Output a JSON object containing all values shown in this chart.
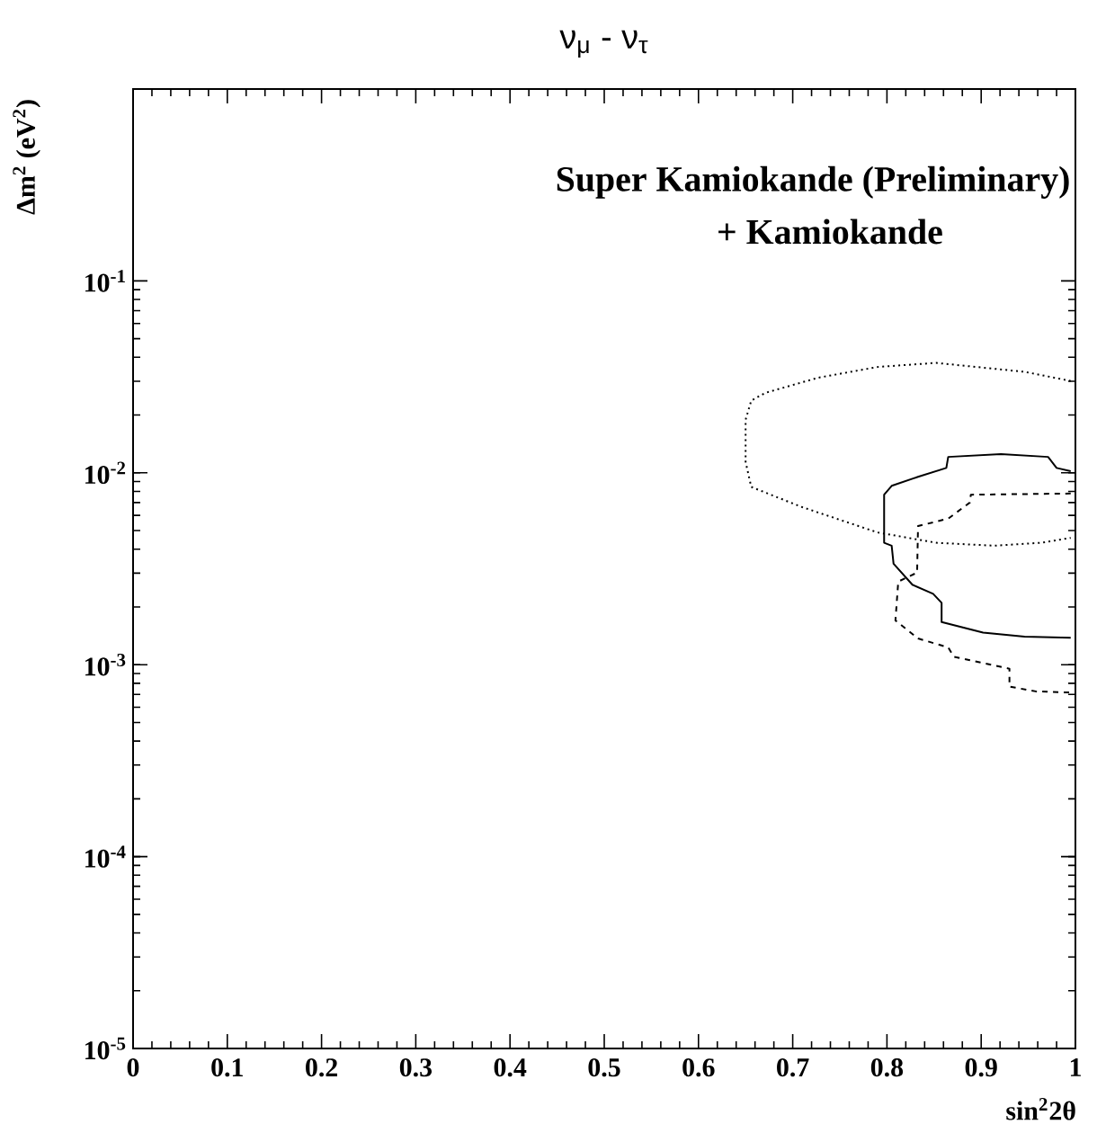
{
  "chart_data": {
    "type": "line",
    "title": "ν$_{μ}$ - ν$_{τ}$",
    "xlabel": "sin$^{2}$2θ",
    "ylabel": "Δm$^{2}$ (eV$^{2}$)",
    "annotations": [
      "Super Kamiokande (Preliminary)",
      "+ Kamiokande"
    ],
    "log": "y",
    "xlim": [
      0,
      1
    ],
    "ylim": [
      1e-05,
      1
    ],
    "xticks": [
      0,
      0.1,
      0.2,
      0.3,
      0.4,
      0.5,
      0.6,
      0.7,
      0.8,
      0.9,
      1
    ],
    "yticks": [
      {
        "value": 1e-05,
        "label": "10$^{-5}$"
      },
      {
        "value": 0.0001,
        "label": "10$^{-4}$"
      },
      {
        "value": 0.001,
        "label": "10$^{-3}$"
      },
      {
        "value": 0.01,
        "label": "10$^{-2}$"
      },
      {
        "value": 0.1,
        "label": "10$^{-1}$"
      }
    ],
    "series": [
      {
        "color": "#000000",
        "line_style": "dotted",
        "x": [
          0.995,
          0.946,
          0.852,
          0.79,
          0.727,
          0.671,
          0.656,
          0.65,
          0.65,
          0.656,
          0.709,
          0.79,
          0.852,
          0.914,
          0.964,
          0.995
        ],
        "values": [
          0.0301,
          0.0336,
          0.0374,
          0.0356,
          0.0313,
          0.0261,
          0.0238,
          0.0189,
          0.0114,
          0.00844,
          0.00665,
          0.00489,
          0.00432,
          0.00417,
          0.00432,
          0.00458
        ]
      },
      {
        "color": "#000000",
        "line_style": "solid",
        "x": [
          0.995,
          0.98,
          0.971,
          0.921,
          0.865,
          0.863,
          0.833,
          0.805,
          0.797,
          0.797,
          0.805,
          0.807,
          0.827,
          0.849,
          0.858,
          0.858,
          0.902,
          0.946,
          0.995
        ],
        "values": [
          0.0102,
          0.0106,
          0.0121,
          0.0125,
          0.0121,
          0.0106,
          0.00953,
          0.00855,
          0.00769,
          0.00432,
          0.00417,
          0.00336,
          0.00261,
          0.00234,
          0.0021,
          0.00167,
          0.00147,
          0.0014,
          0.00138
        ]
      },
      {
        "color": "#000000",
        "line_style": "dashed",
        "x": [
          0.995,
          0.889,
          0.888,
          0.865,
          0.833,
          0.832,
          0.812,
          0.809,
          0.833,
          0.865,
          0.871,
          0.93,
          0.93,
          0.958,
          0.995
        ],
        "values": [
          0.0078,
          0.00769,
          0.007,
          0.00577,
          0.00528,
          0.00302,
          0.00271,
          0.0017,
          0.00137,
          0.00123,
          0.0011,
          0.000953,
          0.000769,
          0.000726,
          0.000716
        ]
      }
    ]
  }
}
